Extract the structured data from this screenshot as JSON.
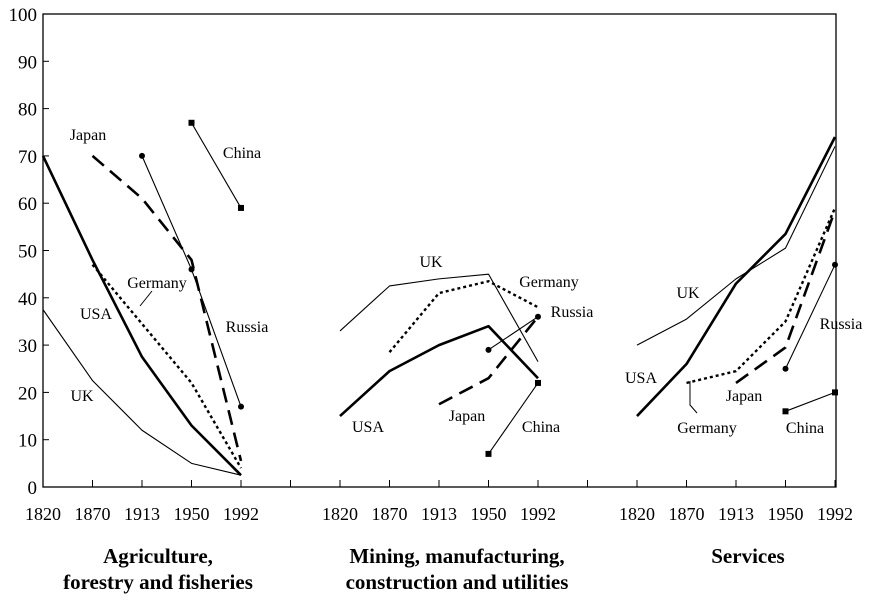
{
  "chart_data": {
    "type": "line",
    "title": "",
    "xlabel": "",
    "ylabel": "",
    "ylim": [
      0,
      100
    ],
    "yticks": [
      0,
      10,
      20,
      30,
      40,
      50,
      60,
      70,
      80,
      90,
      100
    ],
    "grid": false,
    "legend": "none",
    "panels": [
      {
        "title_lines": [
          "Agriculture,",
          "forestry and fisheries"
        ],
        "x": [
          "1820",
          "1870",
          "1913",
          "1950",
          "1992"
        ],
        "series": [
          {
            "name": "USA",
            "style": "thick",
            "values": [
              70,
              48,
              27.5,
              13,
              2.5
            ]
          },
          {
            "name": "UK",
            "style": "thin",
            "values": [
              37.5,
              22.5,
              12,
              5,
              2.5
            ]
          },
          {
            "name": "Germany",
            "style": "dotted",
            "values": [
              null,
              47,
              34.5,
              22,
              4
            ]
          },
          {
            "name": "Japan",
            "style": "dashed",
            "values": [
              null,
              70,
              61,
              48,
              5.5
            ]
          },
          {
            "name": "Russia",
            "style": "thin-marker",
            "values": [
              null,
              null,
              70,
              46,
              17
            ]
          },
          {
            "name": "China",
            "style": "thin-marker",
            "values": [
              null,
              null,
              null,
              77,
              59
            ]
          }
        ]
      },
      {
        "title_lines": [
          "Mining, manufacturing,",
          "construction and utilities"
        ],
        "x": [
          "1820",
          "1870",
          "1913",
          "1950",
          "1992"
        ],
        "series": [
          {
            "name": "UK",
            "style": "thin",
            "values": [
              33,
              42.5,
              44,
              45,
              26.5
            ]
          },
          {
            "name": "Germany",
            "style": "dotted",
            "values": [
              null,
              28.5,
              41,
              43.5,
              38
            ]
          },
          {
            "name": "USA",
            "style": "thick",
            "values": [
              15,
              24.5,
              30,
              34,
              23
            ]
          },
          {
            "name": "Japan",
            "style": "dashed",
            "values": [
              null,
              null,
              17.5,
              23,
              36
            ]
          },
          {
            "name": "Russia",
            "style": "thin-marker",
            "values": [
              null,
              null,
              null,
              29,
              36
            ]
          },
          {
            "name": "China",
            "style": "thin-marker",
            "values": [
              null,
              null,
              null,
              7,
              22
            ]
          }
        ]
      },
      {
        "title_lines": [
          "Services"
        ],
        "x": [
          "1820",
          "1870",
          "1913",
          "1950",
          "1992"
        ],
        "series": [
          {
            "name": "UK",
            "style": "thin",
            "values": [
              30,
              35.5,
              44,
              50.5,
              72
            ]
          },
          {
            "name": "USA",
            "style": "thick",
            "values": [
              15,
              26,
              43,
              53.5,
              74
            ]
          },
          {
            "name": "Germany",
            "style": "dotted",
            "values": [
              null,
              22,
              24.5,
              35,
              59
            ]
          },
          {
            "name": "Japan",
            "style": "dashed",
            "values": [
              null,
              null,
              22,
              29.5,
              58.5
            ]
          },
          {
            "name": "Russia",
            "style": "thin-marker",
            "values": [
              null,
              null,
              null,
              25,
              47
            ]
          },
          {
            "name": "China",
            "style": "thin-marker",
            "values": [
              null,
              null,
              null,
              16,
              20
            ]
          }
        ]
      }
    ]
  }
}
